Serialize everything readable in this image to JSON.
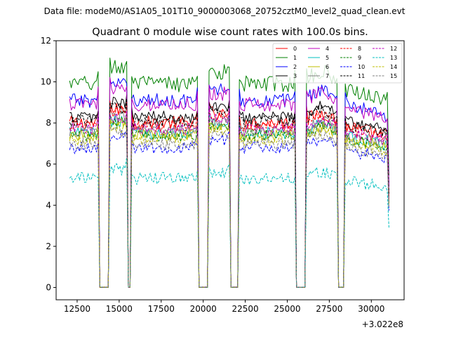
{
  "suptitle": "Data file: modeM0/AS1A05_101T10_9000003068_20752cztM0_level2_quad_clean.evt",
  "chart_data": {
    "type": "line",
    "title": "Quadrant 0 module wise count rates with 100.0s bins.",
    "xlabel": "",
    "ylabel": "",
    "x_offset_label": "+3.022e8",
    "xlim": [
      11250,
      31950
    ],
    "ylim": [
      -0.6,
      12
    ],
    "x_ticks": [
      12500,
      15000,
      17500,
      20000,
      22500,
      25000,
      27500,
      30000
    ],
    "x_tick_labels": [
      "12500",
      "15000",
      "17500",
      "20000",
      "22500",
      "25000",
      "27500",
      "30000"
    ],
    "y_ticks": [
      0,
      2,
      4,
      6,
      8,
      10,
      12
    ],
    "y_tick_labels": [
      "0",
      "2",
      "4",
      "6",
      "8",
      "10",
      "12"
    ],
    "grid": false,
    "legend_position": "top-right",
    "time_range": [
      12050,
      31050
    ],
    "bin_seconds": 100,
    "zero_rate_intervals": [
      [
        13850,
        14350
      ],
      [
        15500,
        15650
      ],
      [
        19750,
        20250
      ],
      [
        21650,
        22050
      ],
      [
        25550,
        26050
      ],
      [
        28050,
        28350
      ]
    ],
    "series": [
      {
        "name": "0",
        "color": "#ff0000",
        "dash": "solid",
        "mean": 8.0,
        "noise": 0.35
      },
      {
        "name": "1",
        "color": "#008000",
        "dash": "solid",
        "mean": 9.9,
        "noise": 0.4
      },
      {
        "name": "2",
        "color": "#0000ff",
        "dash": "solid",
        "mean": 9.1,
        "noise": 0.35
      },
      {
        "name": "3",
        "color": "#000000",
        "dash": "solid",
        "mean": 8.3,
        "noise": 0.3
      },
      {
        "name": "4",
        "color": "#bf00bf",
        "dash": "solid",
        "mean": 8.9,
        "noise": 0.35
      },
      {
        "name": "5",
        "color": "#00bfbf",
        "dash": "solid",
        "mean": 7.5,
        "noise": 0.3
      },
      {
        "name": "6",
        "color": "#bfbf00",
        "dash": "solid",
        "mean": 7.4,
        "noise": 0.3
      },
      {
        "name": "7",
        "color": "#808080",
        "dash": "solid",
        "mean": 7.6,
        "noise": 0.3
      },
      {
        "name": "8",
        "color": "#ff0000",
        "dash": "dashed",
        "mean": 7.9,
        "noise": 0.3
      },
      {
        "name": "9",
        "color": "#008000",
        "dash": "dashed",
        "mean": 7.4,
        "noise": 0.3
      },
      {
        "name": "10",
        "color": "#0000ff",
        "dash": "dashed",
        "mean": 6.8,
        "noise": 0.3
      },
      {
        "name": "11",
        "color": "#000000",
        "dash": "dashed",
        "mean": 8.1,
        "noise": 0.3
      },
      {
        "name": "12",
        "color": "#bf00bf",
        "dash": "dashed",
        "mean": 7.7,
        "noise": 0.3
      },
      {
        "name": "13",
        "color": "#00bfbf",
        "dash": "dashed",
        "mean": 5.3,
        "noise": 0.3
      },
      {
        "name": "14",
        "color": "#bfbf00",
        "dash": "dashed",
        "mean": 7.2,
        "noise": 0.3
      },
      {
        "name": "15",
        "color": "#808080",
        "dash": "dashed",
        "mean": 7.0,
        "noise": 0.3
      }
    ]
  }
}
